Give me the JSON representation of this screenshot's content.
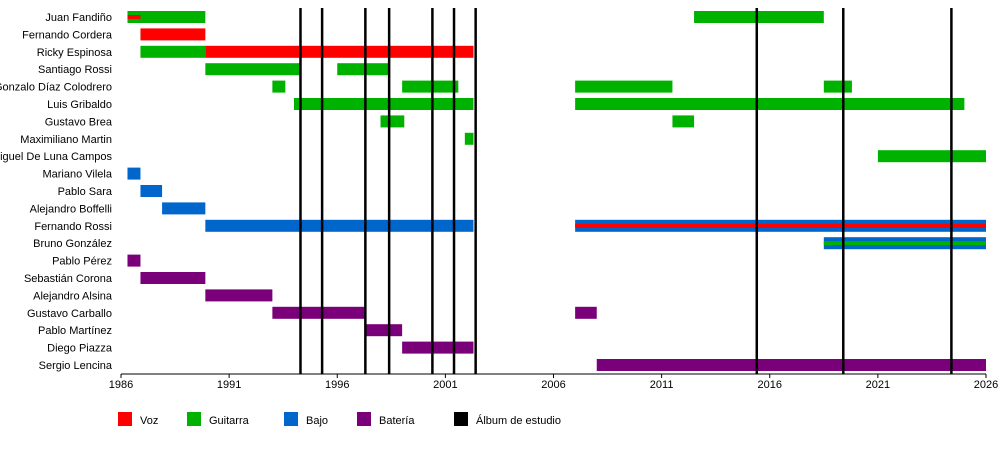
{
  "chart_data": {
    "type": "timeline",
    "xlim": [
      1986,
      2026
    ],
    "x_ticks": [
      "1986",
      "1991",
      "1996",
      "2001",
      "2006",
      "2011",
      "2016",
      "2021",
      "2026"
    ],
    "colors": {
      "voz": "#ff0000",
      "guitarra": "#00b200",
      "bajo": "#0066cc",
      "bateria": "#7a007a",
      "album": "#000000"
    },
    "members": [
      {
        "name": "Juan Fandiño",
        "roles": [
          {
            "role": "guitarra",
            "start": 1986.3,
            "end": 1989.9
          },
          {
            "role": "voz",
            "start": 1986.3,
            "end": 1986.9,
            "thin": true
          },
          {
            "role": "guitarra",
            "start": 2012.5,
            "end": 2018.5
          }
        ]
      },
      {
        "name": "Fernando Cordera",
        "roles": [
          {
            "role": "voz",
            "start": 1986.9,
            "end": 1989.9
          }
        ]
      },
      {
        "name": "Ricky Espinosa",
        "roles": [
          {
            "role": "guitarra",
            "start": 1986.9,
            "end": 1989.9
          },
          {
            "role": "voz",
            "start": 1989.9,
            "end": 2002.3
          }
        ]
      },
      {
        "name": "Santiago Rossi",
        "roles": [
          {
            "role": "guitarra",
            "start": 1989.9,
            "end": 1994.3
          },
          {
            "role": "guitarra",
            "start": 1996.0,
            "end": 1998.4
          }
        ]
      },
      {
        "name": "Gonzalo Díaz Colodrero",
        "roles": [
          {
            "role": "guitarra",
            "start": 1993.0,
            "end": 1993.6
          },
          {
            "role": "guitarra",
            "start": 1999.0,
            "end": 2001.6
          },
          {
            "role": "guitarra",
            "start": 2007.0,
            "end": 2011.5
          },
          {
            "role": "guitarra",
            "start": 2018.5,
            "end": 2019.8
          }
        ]
      },
      {
        "name": "Luis Gribaldo",
        "roles": [
          {
            "role": "guitarra",
            "start": 1994.0,
            "end": 2002.3
          },
          {
            "role": "guitarra",
            "start": 2007.0,
            "end": 2025.0
          }
        ]
      },
      {
        "name": "Gustavo Brea",
        "roles": [
          {
            "role": "guitarra",
            "start": 1998.0,
            "end": 1999.1
          },
          {
            "role": "guitarra",
            "start": 2011.5,
            "end": 2012.5
          }
        ]
      },
      {
        "name": "Maximiliano Martin",
        "roles": [
          {
            "role": "guitarra",
            "start": 2001.9,
            "end": 2002.3
          }
        ]
      },
      {
        "name": "Miguel De Luna Campos",
        "roles": [
          {
            "role": "guitarra",
            "start": 2021.0,
            "end": 2026.0
          }
        ]
      },
      {
        "name": "Mariano Vilela",
        "roles": [
          {
            "role": "bajo",
            "start": 1986.3,
            "end": 1986.9
          }
        ]
      },
      {
        "name": "Pablo Sara",
        "roles": [
          {
            "role": "bajo",
            "start": 1986.9,
            "end": 1987.9
          }
        ]
      },
      {
        "name": "Alejandro Boffelli",
        "roles": [
          {
            "role": "bajo",
            "start": 1987.9,
            "end": 1989.9
          }
        ]
      },
      {
        "name": "Fernando Rossi",
        "roles": [
          {
            "role": "bajo",
            "start": 1989.9,
            "end": 2002.3
          },
          {
            "role": "bajo",
            "start": 2007.0,
            "end": 2026.0,
            "stripe": "voz"
          }
        ]
      },
      {
        "name": "Bruno González",
        "roles": [
          {
            "role": "bajo",
            "start": 2018.5,
            "end": 2026.0,
            "stripe": "guitarra"
          }
        ]
      },
      {
        "name": "Pablo Pérez",
        "roles": [
          {
            "role": "bateria",
            "start": 1986.3,
            "end": 1986.9
          }
        ]
      },
      {
        "name": "Sebastián Corona",
        "roles": [
          {
            "role": "bateria",
            "start": 1986.9,
            "end": 1989.9
          }
        ]
      },
      {
        "name": "Alejandro Alsina",
        "roles": [
          {
            "role": "bateria",
            "start": 1989.9,
            "end": 1993.0
          }
        ]
      },
      {
        "name": "Gustavo Carballo",
        "roles": [
          {
            "role": "bateria",
            "start": 1993.0,
            "end": 1997.3
          },
          {
            "role": "bateria",
            "start": 2007.0,
            "end": 2008.0
          }
        ]
      },
      {
        "name": "Pablo Martínez",
        "roles": [
          {
            "role": "bateria",
            "start": 1997.3,
            "end": 1999.0
          }
        ]
      },
      {
        "name": "Diego Piazza",
        "roles": [
          {
            "role": "bateria",
            "start": 1999.0,
            "end": 2002.3
          }
        ]
      },
      {
        "name": "Sergio Lencina",
        "roles": [
          {
            "role": "bateria",
            "start": 2008.0,
            "end": 2026.0
          }
        ]
      }
    ],
    "albums": [
      1994.3,
      1995.3,
      1997.3,
      1998.4,
      2000.4,
      2001.4,
      2002.4,
      2015.4,
      2019.4,
      2024.4
    ],
    "legend": [
      {
        "key": "voz",
        "label": "Voz"
      },
      {
        "key": "guitarra",
        "label": "Guitarra"
      },
      {
        "key": "bajo",
        "label": "Bajo"
      },
      {
        "key": "bateria",
        "label": "Batería"
      },
      {
        "key": "album",
        "label": "Álbum de estudio"
      }
    ]
  }
}
